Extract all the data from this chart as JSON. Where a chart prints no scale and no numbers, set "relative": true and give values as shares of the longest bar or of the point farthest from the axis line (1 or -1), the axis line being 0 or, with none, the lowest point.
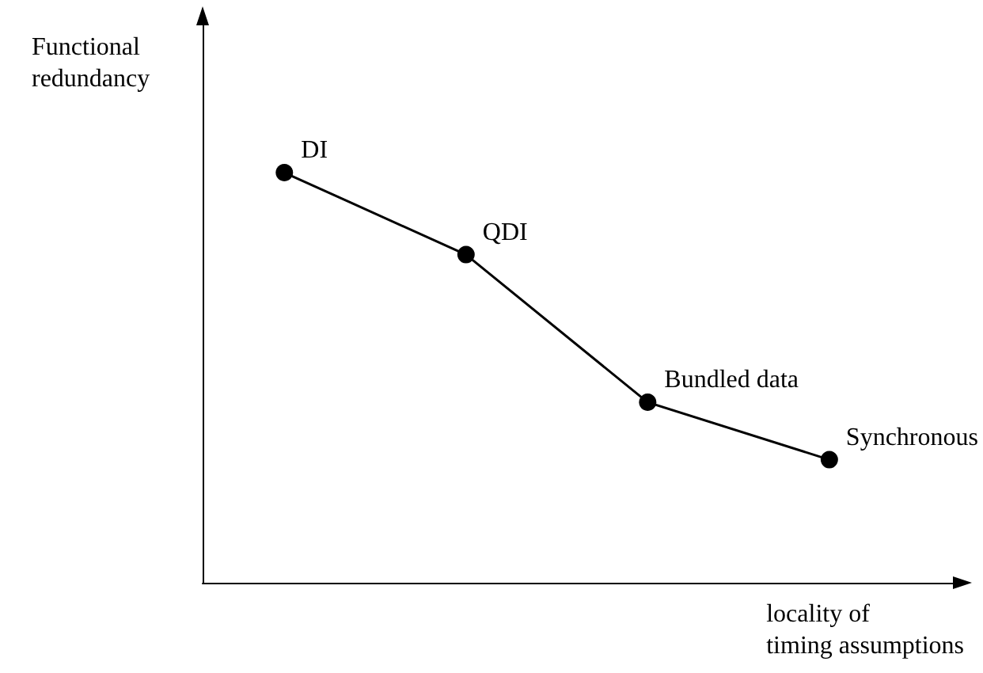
{
  "chart_data": {
    "type": "line",
    "relative": true,
    "xlabel": "locality of\ntiming assumptions",
    "ylabel": "Functional\nredundancy",
    "tick_labels": false,
    "grid": false,
    "marker": "circle",
    "line_style": "solid",
    "categories": [
      "DI",
      "QDI",
      "Bundled data",
      "Synchronous"
    ],
    "series": [
      {
        "color": "#000000",
        "values": [
          1,
          0.8,
          0.44,
          0.3
        ]
      }
    ]
  }
}
